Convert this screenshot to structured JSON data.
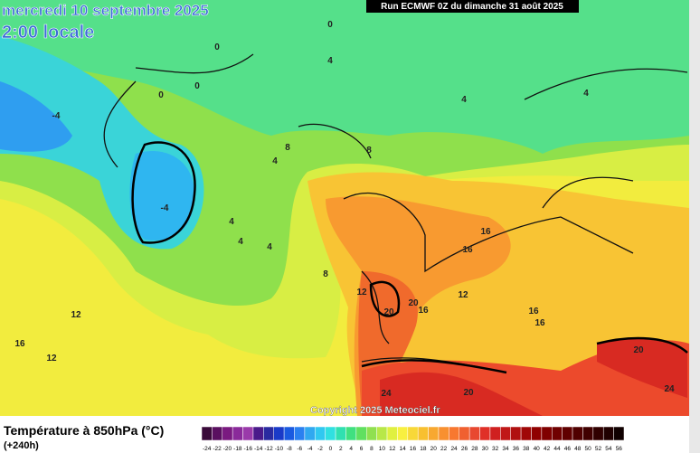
{
  "header": {
    "date": "mercredi 10 septembre 2025",
    "time": "2:00 locale",
    "run": "Run ECMWF 0Z du dimanche 31 août 2025"
  },
  "copyright": "Copyright 2025 Meteociel.fr",
  "legend": {
    "title": "Température à 850hPa (°C)",
    "subtitle": "(+240h)",
    "ticks": [
      -24,
      -22,
      -20,
      -18,
      -16,
      -14,
      -12,
      -10,
      -8,
      -6,
      -4,
      -2,
      0,
      2,
      4,
      6,
      8,
      10,
      12,
      14,
      16,
      18,
      20,
      22,
      24,
      26,
      28,
      30,
      32,
      34,
      36,
      38,
      40,
      42,
      44,
      46,
      48,
      50,
      52,
      54,
      56
    ],
    "colors": [
      "#3a0a3a",
      "#5a1060",
      "#7a1a80",
      "#8a2a9a",
      "#9a3aaa",
      "#4a1a8a",
      "#2a2aa0",
      "#1a3ac8",
      "#1a5ae0",
      "#2a80f0",
      "#30a8f0",
      "#30c8f0",
      "#30e0e0",
      "#30e0b0",
      "#40e080",
      "#60e060",
      "#90e050",
      "#b8e848",
      "#e0f040",
      "#f8f040",
      "#f8d838",
      "#f8c030",
      "#f8a830",
      "#f89030",
      "#f87830",
      "#f06030",
      "#e84830",
      "#e03028",
      "#d02020",
      "#c01818",
      "#b01010",
      "#a00808",
      "#900000",
      "#800000",
      "#700000",
      "#600000",
      "#500000",
      "#400000",
      "#300000",
      "#200000",
      "#100000"
    ]
  },
  "contour_labels": [
    0,
    0,
    4,
    0,
    0,
    -4,
    4,
    4,
    8,
    4,
    8,
    -4,
    4,
    4,
    4,
    8,
    12,
    16,
    16,
    12,
    20,
    20,
    16,
    16,
    16,
    12,
    16,
    12,
    20,
    24,
    20,
    24
  ]
}
